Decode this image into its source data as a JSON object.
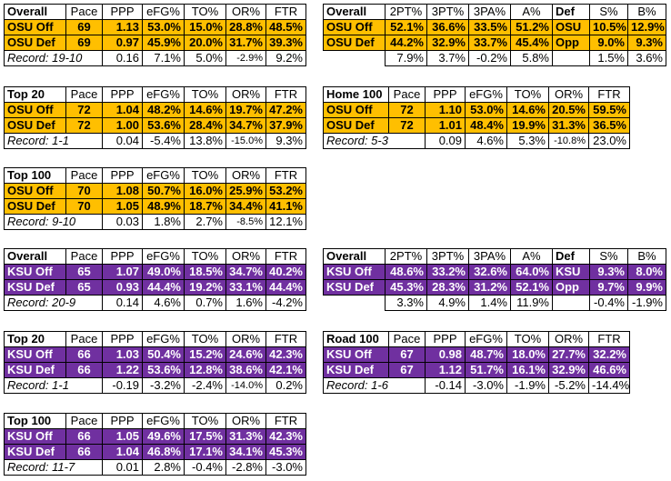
{
  "colors": {
    "osu": "#ffbf00",
    "ksu": "#7030a0"
  },
  "tables": [
    {
      "id": "osu-overall",
      "theme": "osu",
      "headers": [
        "Overall",
        "Pace",
        "PPP",
        "eFG%",
        "TO%",
        "OR%",
        "FTR"
      ],
      "rows": [
        [
          "OSU Off",
          "69",
          "1.13",
          "53.0%",
          "15.0%",
          "28.8%",
          "48.5%"
        ],
        [
          "OSU Def",
          "69",
          "0.97",
          "45.9%",
          "20.0%",
          "31.7%",
          "39.3%"
        ]
      ],
      "record": [
        "Record: 19-10",
        "",
        "0.16",
        "7.1%",
        "5.0%",
        "-2.9%",
        "9.2%"
      ]
    },
    {
      "id": "osu-shooting",
      "theme": "osu",
      "headers": [
        "Overall",
        "2PT%",
        "3PT%",
        "3PA%",
        "A%",
        "Def",
        "S%",
        "B%"
      ],
      "rows": [
        [
          "OSU Off",
          "52.1%",
          "36.6%",
          "33.5%",
          "51.2%",
          "OSU",
          "10.5%",
          "12.9%"
        ],
        [
          "OSU Def",
          "44.2%",
          "32.9%",
          "33.7%",
          "45.4%",
          "Opp",
          "9.0%",
          "9.3%"
        ]
      ],
      "record": [
        "",
        "7.9%",
        "3.7%",
        "-0.2%",
        "5.8%",
        "",
        "1.5%",
        "3.6%"
      ]
    },
    {
      "id": "osu-top20",
      "theme": "osu",
      "headers": [
        "Top 20",
        "Pace",
        "PPP",
        "eFG%",
        "TO%",
        "OR%",
        "FTR"
      ],
      "rows": [
        [
          "OSU Off",
          "72",
          "1.04",
          "48.2%",
          "14.6%",
          "19.7%",
          "47.2%"
        ],
        [
          "OSU Def",
          "72",
          "1.00",
          "53.6%",
          "28.4%",
          "34.7%",
          "37.9%"
        ]
      ],
      "record": [
        "Record: 1-1",
        "",
        "0.04",
        "-5.4%",
        "13.8%",
        "-15.0%",
        "9.3%"
      ]
    },
    {
      "id": "osu-home100",
      "theme": "osu",
      "headers": [
        "Home 100",
        "Pace",
        "PPP",
        "eFG%",
        "TO%",
        "OR%",
        "FTR"
      ],
      "rows": [
        [
          "OSU Off",
          "72",
          "1.10",
          "53.0%",
          "14.6%",
          "20.5%",
          "59.5%"
        ],
        [
          "OSU Def",
          "72",
          "1.01",
          "48.4%",
          "19.9%",
          "31.3%",
          "36.5%"
        ]
      ],
      "record": [
        "Record: 5-3",
        "",
        "0.09",
        "4.6%",
        "5.3%",
        "-10.8%",
        "23.0%"
      ]
    },
    {
      "id": "osu-top100",
      "theme": "osu",
      "headers": [
        "Top 100",
        "Pace",
        "PPP",
        "eFG%",
        "TO%",
        "OR%",
        "FTR"
      ],
      "rows": [
        [
          "OSU Off",
          "70",
          "1.08",
          "50.7%",
          "16.0%",
          "25.9%",
          "53.2%"
        ],
        [
          "OSU Def",
          "70",
          "1.05",
          "48.9%",
          "18.7%",
          "34.4%",
          "41.1%"
        ]
      ],
      "record": [
        "Record: 9-10",
        "",
        "0.03",
        "1.8%",
        "2.7%",
        "-8.5%",
        "12.1%"
      ]
    },
    {
      "id": "ksu-overall",
      "theme": "ksu",
      "headers": [
        "Overall",
        "Pace",
        "PPP",
        "eFG%",
        "TO%",
        "OR%",
        "FTR"
      ],
      "rows": [
        [
          "KSU Off",
          "65",
          "1.07",
          "49.0%",
          "18.5%",
          "34.7%",
          "40.2%"
        ],
        [
          "KSU Def",
          "65",
          "0.93",
          "44.4%",
          "19.2%",
          "33.1%",
          "44.4%"
        ]
      ],
      "record": [
        "Record: 20-9",
        "",
        "0.14",
        "4.6%",
        "0.7%",
        "1.6%",
        "-4.2%"
      ]
    },
    {
      "id": "ksu-shooting",
      "theme": "ksu",
      "headers": [
        "Overall",
        "2PT%",
        "3PT%",
        "3PA%",
        "A%",
        "Def",
        "S%",
        "B%"
      ],
      "rows": [
        [
          "KSU Off",
          "48.6%",
          "33.2%",
          "32.6%",
          "64.0%",
          "KSU",
          "9.3%",
          "8.0%"
        ],
        [
          "KSU Def",
          "45.3%",
          "28.3%",
          "31.2%",
          "52.1%",
          "Opp",
          "9.7%",
          "9.9%"
        ]
      ],
      "record": [
        "",
        "3.3%",
        "4.9%",
        "1.4%",
        "11.9%",
        "",
        "-0.4%",
        "-1.9%"
      ]
    },
    {
      "id": "ksu-top20",
      "theme": "ksu",
      "headers": [
        "Top 20",
        "Pace",
        "PPP",
        "eFG%",
        "TO%",
        "OR%",
        "FTR"
      ],
      "rows": [
        [
          "KSU Off",
          "66",
          "1.03",
          "50.4%",
          "15.2%",
          "24.6%",
          "42.3%"
        ],
        [
          "KSU Def",
          "66",
          "1.22",
          "53.6%",
          "12.8%",
          "38.6%",
          "42.1%"
        ]
      ],
      "record": [
        "Record: 1-1",
        "",
        "-0.19",
        "-3.2%",
        "-2.4%",
        "-14.0%",
        "0.2%"
      ]
    },
    {
      "id": "ksu-road100",
      "theme": "ksu",
      "headers": [
        "Road 100",
        "Pace",
        "PPP",
        "eFG%",
        "TO%",
        "OR%",
        "FTR"
      ],
      "rows": [
        [
          "KSU Off",
          "67",
          "0.98",
          "48.7%",
          "18.0%",
          "27.7%",
          "32.2%"
        ],
        [
          "KSU Def",
          "67",
          "1.12",
          "51.7%",
          "16.1%",
          "32.9%",
          "46.6%"
        ]
      ],
      "record": [
        "Record: 1-6",
        "",
        "-0.14",
        "-3.0%",
        "-1.9%",
        "-5.2%",
        "-14.4%"
      ]
    },
    {
      "id": "ksu-top100",
      "theme": "ksu",
      "headers": [
        "Top 100",
        "Pace",
        "PPP",
        "eFG%",
        "TO%",
        "OR%",
        "FTR"
      ],
      "rows": [
        [
          "KSU Off",
          "66",
          "1.05",
          "49.6%",
          "17.5%",
          "31.3%",
          "42.3%"
        ],
        [
          "KSU Def",
          "66",
          "1.04",
          "46.8%",
          "17.1%",
          "34.1%",
          "45.3%"
        ]
      ],
      "record": [
        "Record: 11-7",
        "",
        "0.01",
        "2.8%",
        "-0.4%",
        "-2.8%",
        "-3.0%"
      ]
    }
  ]
}
